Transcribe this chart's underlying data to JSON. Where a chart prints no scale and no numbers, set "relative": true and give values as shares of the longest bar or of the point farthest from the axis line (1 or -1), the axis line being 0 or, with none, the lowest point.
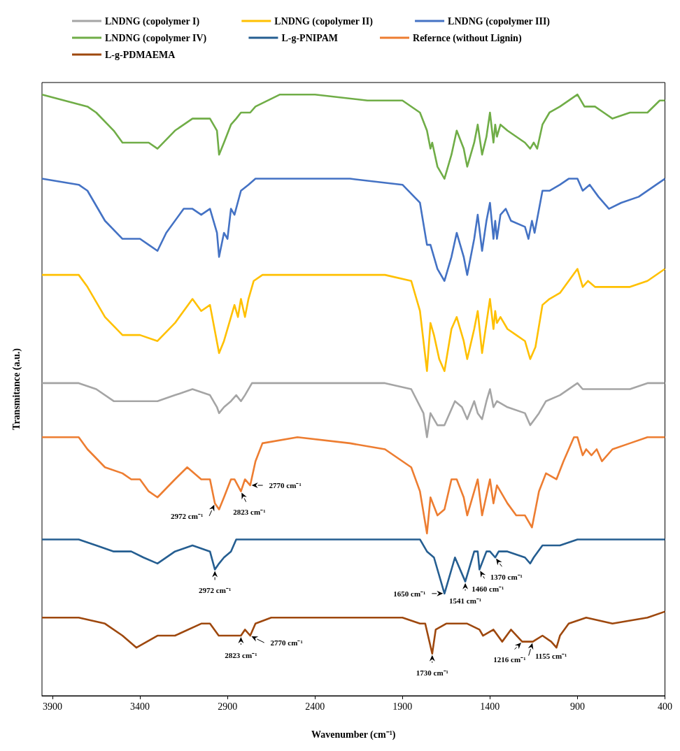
{
  "chart_data": {
    "type": "line",
    "relative": true,
    "xlabel": "Wavenumber (cm⁻¹)",
    "ylabel": "Transmitance (a.u.)",
    "xlim": [
      3960,
      400
    ],
    "xticks": [
      3900,
      3400,
      2900,
      2400,
      1900,
      1400,
      900,
      400
    ],
    "grid": false,
    "legend": "top",
    "tick_labels": "x",
    "series": [
      {
        "name": "LNDNG (copolymer I)",
        "color": "#a5a5a5",
        "x": [
          3960,
          3750,
          3650,
          3550,
          3450,
          3300,
          3200,
          3100,
          3000,
          2960,
          2948,
          2920,
          2880,
          2850,
          2823,
          2800,
          2760,
          2600,
          2000,
          1850,
          1780,
          1760,
          1740,
          1700,
          1660,
          1600,
          1560,
          1530,
          1490,
          1470,
          1445,
          1420,
          1400,
          1380,
          1360,
          1300,
          1200,
          1170,
          1120,
          1080,
          1000,
          900,
          870,
          800,
          600,
          500,
          400
        ],
        "values": [
          0.52,
          0.52,
          0.51,
          0.49,
          0.49,
          0.49,
          0.5,
          0.51,
          0.5,
          0.48,
          0.47,
          0.48,
          0.49,
          0.5,
          0.49,
          0.5,
          0.52,
          0.52,
          0.52,
          0.51,
          0.47,
          0.43,
          0.47,
          0.45,
          0.45,
          0.49,
          0.48,
          0.46,
          0.49,
          0.47,
          0.46,
          0.49,
          0.51,
          0.48,
          0.49,
          0.48,
          0.47,
          0.45,
          0.47,
          0.49,
          0.5,
          0.52,
          0.51,
          0.51,
          0.51,
          0.52,
          0.52
        ]
      },
      {
        "name": "LNDNG (copolymer II)",
        "color": "#ffc000",
        "x": [
          3960,
          3750,
          3700,
          3600,
          3500,
          3400,
          3300,
          3200,
          3100,
          3050,
          3000,
          2948,
          2920,
          2880,
          2860,
          2840,
          2823,
          2800,
          2780,
          2750,
          2700,
          2400,
          2000,
          1850,
          1800,
          1760,
          1740,
          1720,
          1690,
          1660,
          1620,
          1590,
          1550,
          1530,
          1490,
          1470,
          1445,
          1420,
          1400,
          1380,
          1370,
          1360,
          1340,
          1300,
          1250,
          1200,
          1170,
          1140,
          1100,
          1060,
          1000,
          950,
          900,
          870,
          840,
          800,
          720,
          600,
          500,
          400
        ],
        "values": [
          0.7,
          0.7,
          0.68,
          0.63,
          0.6,
          0.6,
          0.59,
          0.62,
          0.66,
          0.64,
          0.65,
          0.57,
          0.59,
          0.63,
          0.65,
          0.63,
          0.66,
          0.63,
          0.66,
          0.69,
          0.7,
          0.7,
          0.7,
          0.69,
          0.64,
          0.54,
          0.62,
          0.6,
          0.56,
          0.54,
          0.61,
          0.63,
          0.59,
          0.56,
          0.61,
          0.64,
          0.57,
          0.62,
          0.66,
          0.61,
          0.64,
          0.62,
          0.63,
          0.61,
          0.6,
          0.59,
          0.56,
          0.58,
          0.65,
          0.66,
          0.67,
          0.69,
          0.71,
          0.68,
          0.69,
          0.68,
          0.68,
          0.68,
          0.69,
          0.71
        ]
      },
      {
        "name": "LNDNG (copolymer III)",
        "color": "#4472c4",
        "x": [
          3960,
          3750,
          3700,
          3600,
          3500,
          3450,
          3400,
          3350,
          3300,
          3250,
          3150,
          3100,
          3050,
          3000,
          2960,
          2948,
          2920,
          2900,
          2880,
          2860,
          2823,
          2780,
          2740,
          2600,
          2200,
          1900,
          1800,
          1760,
          1740,
          1700,
          1660,
          1620,
          1590,
          1550,
          1530,
          1490,
          1470,
          1445,
          1420,
          1400,
          1380,
          1370,
          1360,
          1340,
          1310,
          1280,
          1200,
          1180,
          1160,
          1145,
          1100,
          1060,
          1000,
          950,
          900,
          870,
          830,
          780,
          720,
          650,
          550,
          450,
          400
        ],
        "values": [
          0.86,
          0.85,
          0.84,
          0.79,
          0.76,
          0.76,
          0.76,
          0.75,
          0.74,
          0.77,
          0.81,
          0.81,
          0.8,
          0.81,
          0.77,
          0.73,
          0.77,
          0.76,
          0.81,
          0.8,
          0.84,
          0.85,
          0.86,
          0.86,
          0.86,
          0.85,
          0.82,
          0.75,
          0.75,
          0.71,
          0.69,
          0.73,
          0.77,
          0.73,
          0.7,
          0.76,
          0.8,
          0.74,
          0.79,
          0.82,
          0.76,
          0.79,
          0.76,
          0.8,
          0.81,
          0.79,
          0.78,
          0.76,
          0.79,
          0.77,
          0.84,
          0.84,
          0.85,
          0.86,
          0.86,
          0.84,
          0.85,
          0.83,
          0.81,
          0.82,
          0.83,
          0.85,
          0.86
        ]
      },
      {
        "name": "LNDNG (copolymer IV)",
        "color": "#70ad47",
        "x": [
          3960,
          3700,
          3650,
          3550,
          3500,
          3450,
          3400,
          3350,
          3300,
          3200,
          3100,
          3050,
          3000,
          2960,
          2948,
          2920,
          2880,
          2850,
          2823,
          2800,
          2770,
          2740,
          2600,
          2400,
          2100,
          1900,
          1800,
          1760,
          1740,
          1730,
          1700,
          1660,
          1620,
          1590,
          1550,
          1530,
          1490,
          1470,
          1445,
          1420,
          1400,
          1380,
          1370,
          1360,
          1340,
          1300,
          1200,
          1170,
          1150,
          1130,
          1100,
          1060,
          1000,
          900,
          860,
          800,
          750,
          700,
          600,
          500,
          430,
          400
        ],
        "values": [
          1.0,
          0.98,
          0.97,
          0.94,
          0.92,
          0.92,
          0.92,
          0.92,
          0.91,
          0.94,
          0.96,
          0.96,
          0.96,
          0.94,
          0.9,
          0.92,
          0.95,
          0.96,
          0.97,
          0.97,
          0.97,
          0.98,
          1.0,
          1.0,
          0.99,
          0.99,
          0.97,
          0.94,
          0.91,
          0.92,
          0.88,
          0.86,
          0.9,
          0.94,
          0.91,
          0.88,
          0.92,
          0.95,
          0.9,
          0.93,
          0.97,
          0.92,
          0.95,
          0.93,
          0.95,
          0.94,
          0.92,
          0.91,
          0.92,
          0.91,
          0.95,
          0.97,
          0.98,
          1.0,
          0.98,
          0.98,
          0.97,
          0.96,
          0.97,
          0.97,
          0.99,
          0.99
        ]
      },
      {
        "name": "L-g-PNIPAM",
        "color": "#255e91",
        "x": [
          3960,
          3750,
          3650,
          3550,
          3450,
          3380,
          3300,
          3200,
          3100,
          3000,
          2972,
          2948,
          2920,
          2880,
          2850,
          2500,
          2000,
          1800,
          1760,
          1720,
          1660,
          1600,
          1541,
          1490,
          1470,
          1460,
          1420,
          1400,
          1370,
          1350,
          1300,
          1200,
          1170,
          1150,
          1100,
          1000,
          900,
          800,
          600,
          400
        ],
        "values": [
          0.26,
          0.26,
          0.25,
          0.24,
          0.24,
          0.23,
          0.22,
          0.24,
          0.25,
          0.24,
          0.21,
          0.22,
          0.23,
          0.24,
          0.26,
          0.26,
          0.26,
          0.26,
          0.24,
          0.23,
          0.17,
          0.23,
          0.19,
          0.24,
          0.24,
          0.21,
          0.24,
          0.24,
          0.23,
          0.24,
          0.24,
          0.23,
          0.22,
          0.23,
          0.25,
          0.25,
          0.26,
          0.26,
          0.26,
          0.26
        ]
      },
      {
        "name": "Refernce (without Lignin)",
        "color": "#ed7d31",
        "x": [
          3960,
          3750,
          3700,
          3600,
          3500,
          3450,
          3400,
          3350,
          3300,
          3200,
          3130,
          3050,
          3000,
          2972,
          2948,
          2920,
          2880,
          2860,
          2823,
          2800,
          2770,
          2740,
          2700,
          2500,
          2200,
          2000,
          1850,
          1800,
          1760,
          1740,
          1700,
          1660,
          1620,
          1590,
          1550,
          1530,
          1490,
          1470,
          1445,
          1400,
          1380,
          1360,
          1300,
          1250,
          1200,
          1160,
          1120,
          1080,
          1020,
          980,
          920,
          900,
          870,
          850,
          820,
          790,
          760,
          700,
          600,
          500,
          400
        ],
        "values": [
          0.43,
          0.43,
          0.41,
          0.38,
          0.37,
          0.36,
          0.36,
          0.34,
          0.33,
          0.36,
          0.38,
          0.36,
          0.36,
          0.32,
          0.31,
          0.33,
          0.36,
          0.36,
          0.34,
          0.36,
          0.35,
          0.39,
          0.42,
          0.43,
          0.42,
          0.41,
          0.38,
          0.34,
          0.27,
          0.33,
          0.3,
          0.31,
          0.36,
          0.36,
          0.33,
          0.3,
          0.34,
          0.36,
          0.3,
          0.36,
          0.32,
          0.35,
          0.32,
          0.3,
          0.3,
          0.28,
          0.34,
          0.37,
          0.36,
          0.39,
          0.43,
          0.43,
          0.4,
          0.41,
          0.4,
          0.41,
          0.39,
          0.41,
          0.42,
          0.43,
          0.43
        ]
      },
      {
        "name": "L-g-PDMAEMA",
        "color": "#9e480e",
        "x": [
          3960,
          3750,
          3600,
          3500,
          3420,
          3300,
          3200,
          3050,
          3000,
          2950,
          2900,
          2860,
          2823,
          2800,
          2770,
          2740,
          2650,
          2200,
          1900,
          1800,
          1770,
          1730,
          1710,
          1650,
          1580,
          1530,
          1460,
          1440,
          1380,
          1330,
          1280,
          1216,
          1155,
          1100,
          1050,
          1020,
          1000,
          950,
          850,
          700,
          500,
          400
        ],
        "values": [
          0.13,
          0.13,
          0.12,
          0.1,
          0.08,
          0.1,
          0.1,
          0.12,
          0.12,
          0.1,
          0.1,
          0.1,
          0.1,
          0.11,
          0.1,
          0.12,
          0.13,
          0.13,
          0.13,
          0.12,
          0.12,
          0.07,
          0.11,
          0.12,
          0.12,
          0.12,
          0.11,
          0.1,
          0.11,
          0.09,
          0.11,
          0.09,
          0.09,
          0.1,
          0.09,
          0.08,
          0.1,
          0.12,
          0.13,
          0.12,
          0.13,
          0.14
        ]
      }
    ],
    "annotations": [
      {
        "text": "2972 cm⁻¹",
        "x": 2972,
        "y": 0.32
      },
      {
        "text": "2823 cm⁻¹",
        "x": 2823,
        "y": 0.34
      },
      {
        "text": "2770 cm⁻¹",
        "x": 2770,
        "y": 0.35
      },
      {
        "text": "2972 cm⁻¹",
        "x": 2972,
        "y": 0.21
      },
      {
        "text": "1650 cm⁻¹",
        "x": 1660,
        "y": 0.17
      },
      {
        "text": "1541 cm⁻¹",
        "x": 1541,
        "y": 0.19
      },
      {
        "text": "1460 cm⁻¹",
        "x": 1460,
        "y": 0.21
      },
      {
        "text": "1370 cm⁻¹",
        "x": 1370,
        "y": 0.23
      },
      {
        "text": "2823 cm⁻¹",
        "x": 2823,
        "y": 0.1
      },
      {
        "text": "2770 cm⁻¹",
        "x": 2770,
        "y": 0.1
      },
      {
        "text": "1730 cm⁻¹",
        "x": 1730,
        "y": 0.07
      },
      {
        "text": "1216 cm⁻¹",
        "x": 1216,
        "y": 0.09
      },
      {
        "text": "1155 cm⁻¹",
        "x": 1155,
        "y": 0.09
      }
    ]
  }
}
